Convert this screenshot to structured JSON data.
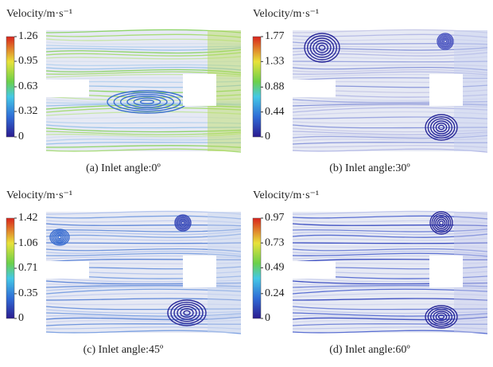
{
  "chart_data": [
    {
      "type": "streamline",
      "title": "(a) Inlet angle:0º",
      "colorbar_label": "Velocity/m·s⁻¹",
      "clim": [
        0,
        1.26
      ],
      "cticks": [
        0,
        0.32,
        0.63,
        0.95,
        1.26
      ]
    },
    {
      "type": "streamline",
      "title": "(b) Inlet angle:30º",
      "colorbar_label": "Velocity/m·s⁻¹",
      "clim": [
        0,
        1.77
      ],
      "cticks": [
        0,
        0.44,
        0.88,
        1.33,
        1.77
      ]
    },
    {
      "type": "streamline",
      "title": "(c) Inlet angle:45º",
      "colorbar_label": "Velocity/m·s⁻¹",
      "clim": [
        0,
        1.42
      ],
      "cticks": [
        0,
        0.35,
        0.71,
        1.06,
        1.42
      ]
    },
    {
      "type": "streamline",
      "title": "(d) Inlet angle:60º",
      "colorbar_label": "Velocity/m·s⁻¹",
      "clim": [
        0,
        0.97
      ],
      "cticks": [
        0,
        0.24,
        0.49,
        0.73,
        0.97
      ]
    }
  ]
}
